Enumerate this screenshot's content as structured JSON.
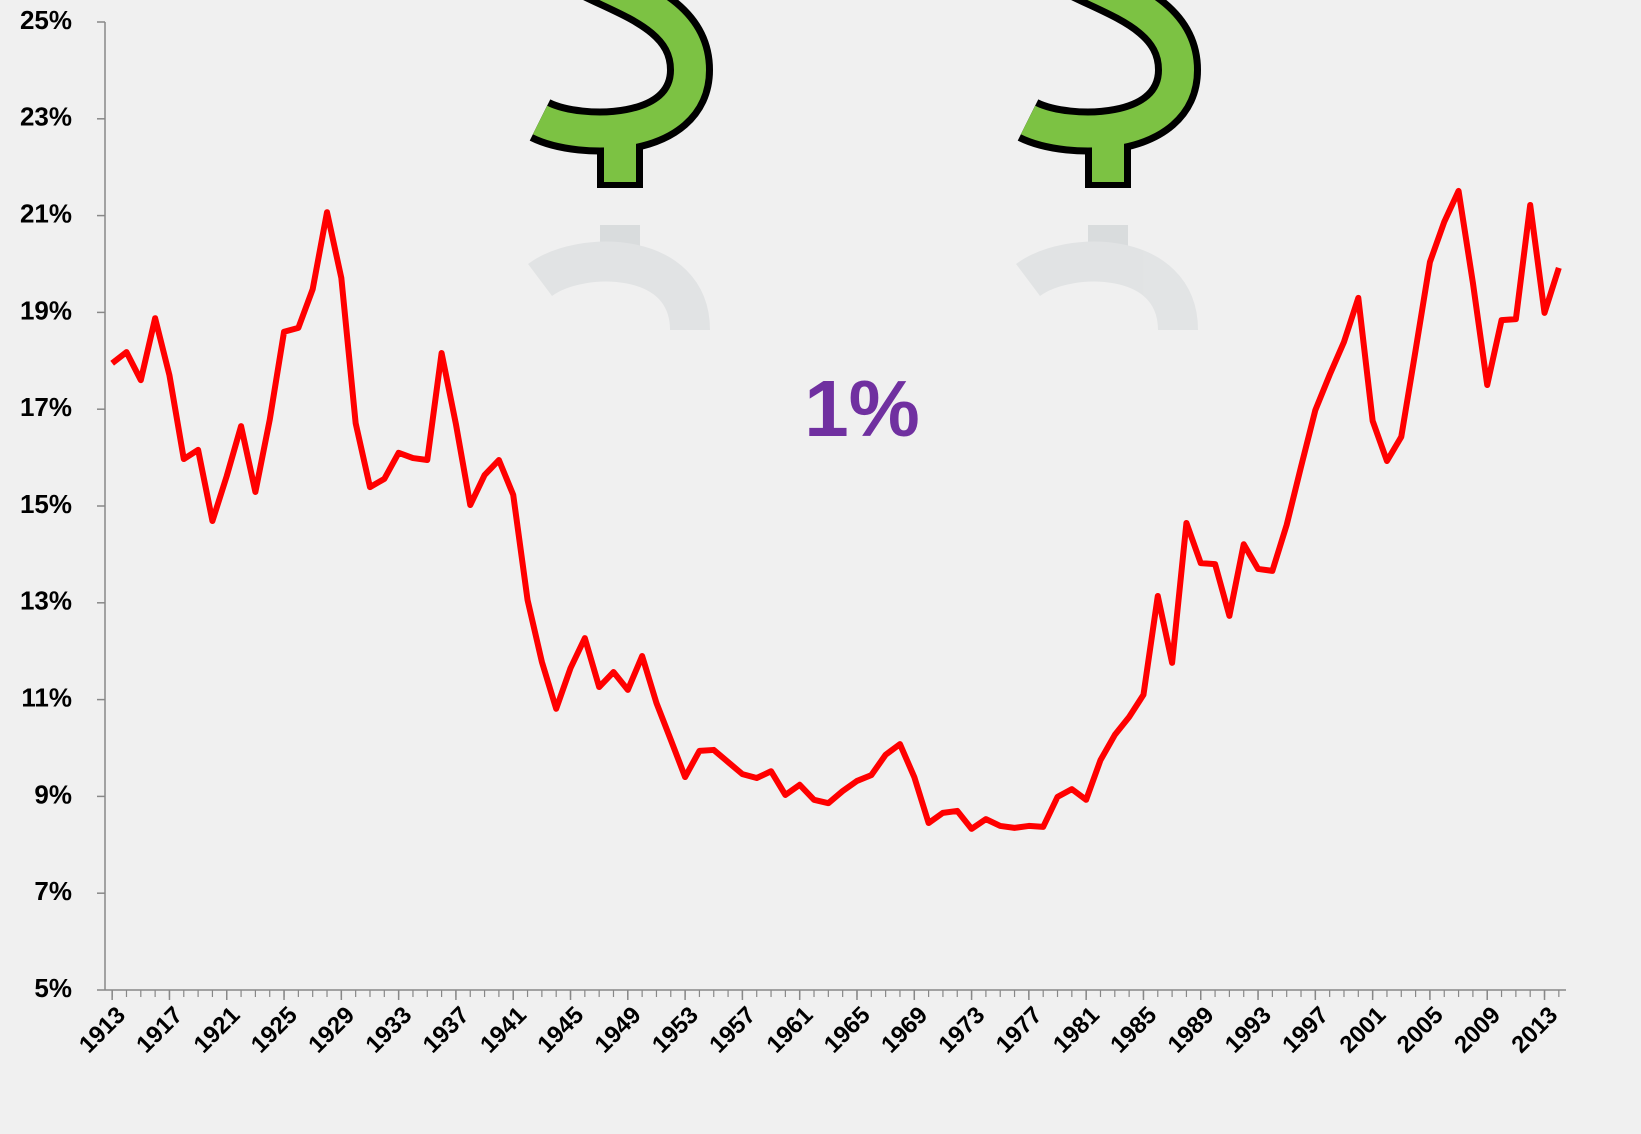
{
  "chart_data": {
    "type": "line",
    "annotation": "1%",
    "x": [
      1913,
      1914,
      1915,
      1916,
      1917,
      1918,
      1919,
      1920,
      1921,
      1922,
      1923,
      1924,
      1925,
      1926,
      1927,
      1928,
      1929,
      1930,
      1931,
      1932,
      1933,
      1934,
      1935,
      1936,
      1937,
      1938,
      1939,
      1940,
      1941,
      1942,
      1943,
      1944,
      1945,
      1946,
      1947,
      1948,
      1949,
      1950,
      1951,
      1952,
      1953,
      1954,
      1955,
      1956,
      1957,
      1958,
      1959,
      1960,
      1961,
      1962,
      1963,
      1964,
      1965,
      1966,
      1967,
      1968,
      1969,
      1970,
      1971,
      1972,
      1973,
      1974,
      1975,
      1976,
      1977,
      1978,
      1979,
      1980,
      1981,
      1982,
      1983,
      1984,
      1985,
      1986,
      1987,
      1988,
      1989,
      1990,
      1991,
      1992,
      1993,
      1994,
      1995,
      1996,
      1997,
      1998,
      1999,
      2000,
      2001,
      2002,
      2003,
      2004,
      2005,
      2006,
      2007,
      2008,
      2009,
      2010,
      2011,
      2012,
      2013,
      2014
    ],
    "series": [
      {
        "color": "#ff0000",
        "values": [
          17.95,
          18.18,
          17.6,
          18.88,
          17.7,
          15.97,
          16.16,
          14.69,
          15.62,
          16.65,
          15.29,
          16.78,
          18.6,
          18.68,
          19.48,
          21.07,
          19.71,
          16.71,
          15.39,
          15.56,
          16.1,
          15.99,
          15.95,
          18.16,
          16.69,
          15.02,
          15.64,
          15.95,
          15.23,
          13.06,
          11.78,
          10.81,
          11.65,
          12.27,
          11.26,
          11.57,
          11.2,
          11.9,
          10.93,
          10.17,
          9.4,
          9.94,
          9.96,
          9.71,
          9.46,
          9.38,
          9.52,
          9.03,
          9.24,
          8.93,
          8.86,
          9.11,
          9.32,
          9.44,
          9.86,
          10.08,
          9.4,
          8.45,
          8.66,
          8.7,
          8.33,
          8.53,
          8.39,
          8.35,
          8.39,
          8.37,
          8.99,
          9.15,
          8.93,
          9.75,
          10.27,
          10.64,
          11.1,
          13.14,
          11.76,
          14.65,
          13.82,
          13.8,
          12.73,
          14.21,
          13.7,
          13.66,
          14.61,
          15.81,
          16.98,
          17.71,
          18.39,
          19.3,
          16.76,
          15.93,
          16.43,
          18.22,
          20.04,
          20.87,
          21.51,
          19.61,
          17.5,
          18.84,
          18.86,
          21.22,
          18.99,
          19.92
        ]
      }
    ],
    "xlim": [
      1912.5,
      2014.5
    ],
    "xticks": [
      1913,
      1917,
      1921,
      1925,
      1929,
      1933,
      1937,
      1941,
      1945,
      1949,
      1953,
      1957,
      1961,
      1965,
      1969,
      1973,
      1977,
      1981,
      1985,
      1989,
      1993,
      1997,
      2001,
      2005,
      2009,
      2013
    ],
    "ylim": [
      5,
      25
    ],
    "yticks": [
      {
        "value": 5,
        "label": "5%"
      },
      {
        "value": 7,
        "label": "7%"
      },
      {
        "value": 9,
        "label": "9%"
      },
      {
        "value": 11,
        "label": "11%"
      },
      {
        "value": 13,
        "label": "13%"
      },
      {
        "value": 15,
        "label": "15%"
      },
      {
        "value": 17,
        "label": "17%"
      },
      {
        "value": 19,
        "label": "19%"
      },
      {
        "value": 21,
        "label": "21%"
      },
      {
        "value": 23,
        "label": "23%"
      },
      {
        "value": 25,
        "label": "25%"
      }
    ],
    "grid": false
  }
}
